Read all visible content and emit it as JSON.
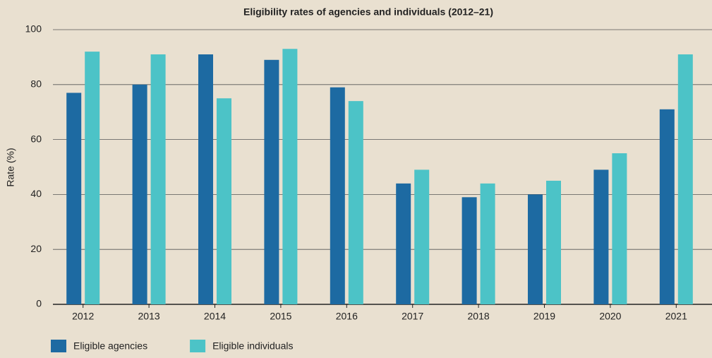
{
  "chart_data": {
    "type": "bar",
    "title": "Eligibility rates of agencies and individuals (2012–21)",
    "y_label": "Rate (%)",
    "categories": [
      "2012",
      "2013",
      "2014",
      "2015",
      "2016",
      "2017",
      "2018",
      "2019",
      "2020",
      "2021"
    ],
    "series": [
      {
        "name": "Eligible agencies",
        "color": "#1d6aa2",
        "values": [
          77,
          80,
          91,
          89,
          79,
          44,
          39,
          40,
          49,
          71
        ]
      },
      {
        "name": "Eligible individuals",
        "color": "#4cc3c7",
        "values": [
          92,
          91,
          75,
          93,
          74,
          49,
          44,
          45,
          55,
          91
        ]
      }
    ],
    "ylim": [
      0,
      100
    ],
    "yticks": [
      0,
      20,
      40,
      60,
      80,
      100
    ],
    "grid": true,
    "legend": "bottom-left"
  }
}
